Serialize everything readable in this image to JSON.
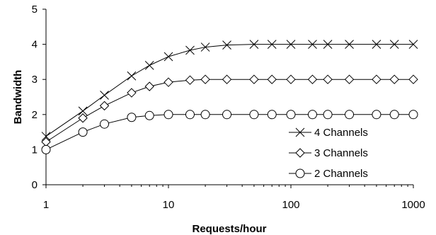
{
  "chart_data": {
    "type": "line",
    "title": "",
    "xlabel": "Requests/hour",
    "ylabel": "Bandwidth",
    "xscale": "log",
    "xlim": [
      1,
      1000
    ],
    "ylim": [
      0,
      5
    ],
    "x_ticks": [
      1,
      10,
      100,
      1000
    ],
    "x_tick_labels": [
      "1",
      "10",
      "100",
      "1000"
    ],
    "y_ticks": [
      0,
      1,
      2,
      3,
      4,
      5
    ],
    "y_tick_labels": [
      "0",
      "1",
      "2",
      "3",
      "4",
      "5"
    ],
    "grid": false,
    "legend_position": "bottom-right",
    "series": [
      {
        "name": "4 Channels",
        "marker": "x",
        "x": [
          1,
          2,
          3,
          5,
          7,
          10,
          15,
          20,
          30,
          50,
          70,
          100,
          150,
          200,
          300,
          500,
          700,
          1000
        ],
        "y": [
          1.38,
          2.1,
          2.55,
          3.1,
          3.4,
          3.65,
          3.83,
          3.92,
          3.98,
          4.0,
          4.0,
          4.0,
          4.0,
          4.0,
          4.0,
          4.0,
          4.0,
          4.0
        ]
      },
      {
        "name": "3 Channels",
        "marker": "diamond",
        "x": [
          1,
          2,
          3,
          5,
          7,
          10,
          15,
          20,
          30,
          50,
          70,
          100,
          150,
          200,
          300,
          500,
          700,
          1000
        ],
        "y": [
          1.22,
          1.9,
          2.25,
          2.62,
          2.8,
          2.92,
          2.98,
          3.0,
          3.0,
          3.0,
          3.0,
          3.0,
          3.0,
          3.0,
          3.0,
          3.0,
          3.0,
          3.0
        ]
      },
      {
        "name": "2 Channels",
        "marker": "circle",
        "x": [
          1,
          2,
          3,
          5,
          7,
          10,
          15,
          20,
          30,
          50,
          70,
          100,
          150,
          200,
          300,
          500,
          700,
          1000
        ],
        "y": [
          1.0,
          1.5,
          1.73,
          1.92,
          1.97,
          2.0,
          2.0,
          2.0,
          2.0,
          2.0,
          2.0,
          2.0,
          2.0,
          2.0,
          2.0,
          2.0,
          2.0,
          2.0
        ]
      }
    ]
  }
}
